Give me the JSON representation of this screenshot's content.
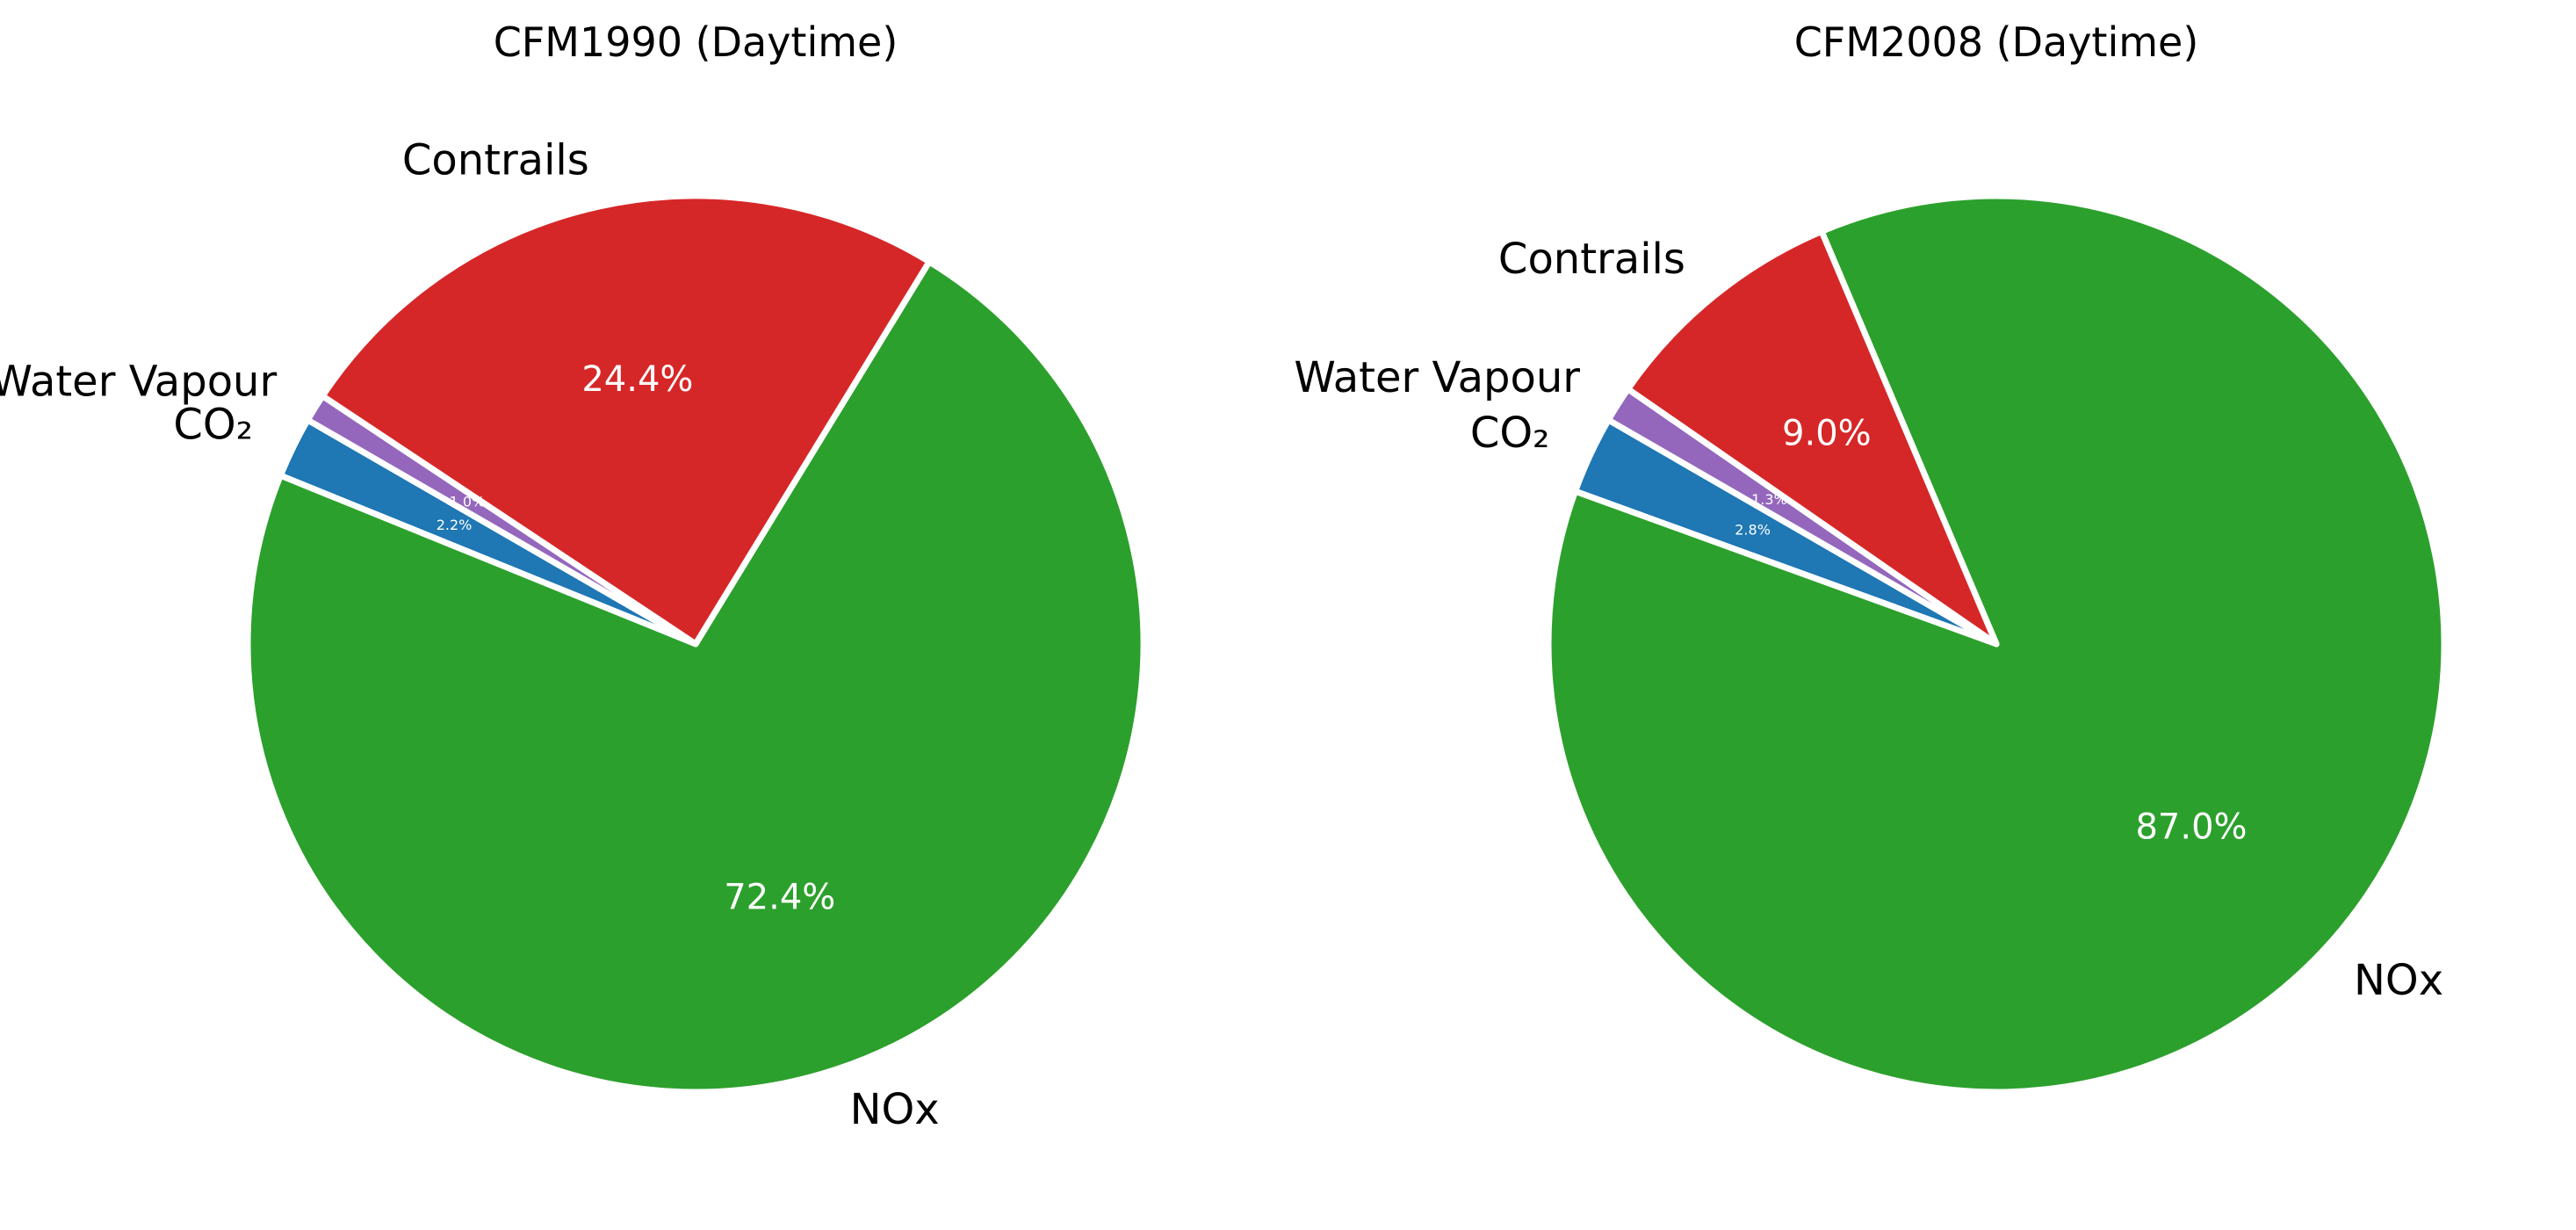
{
  "chart_data": [
    {
      "type": "pie",
      "title": "CFM1990 (Daytime)",
      "start_angle_deg": 150,
      "direction": "counterclockwise",
      "slices": [
        {
          "label": "CO₂",
          "value": 2.2,
          "pct_label": "2.2%",
          "color": "#1f77b4"
        },
        {
          "label": "NOx",
          "value": 72.4,
          "pct_label": "72.4%",
          "color": "#2ca02c"
        },
        {
          "label": "Contrails",
          "value": 24.4,
          "pct_label": "24.4%",
          "color": "#d62728"
        },
        {
          "label": "Water Vapour",
          "value": 1.0,
          "pct_label": "1.0%",
          "color": "#9467bd"
        }
      ]
    },
    {
      "type": "pie",
      "title": "CFM2008 (Daytime)",
      "start_angle_deg": 150,
      "direction": "counterclockwise",
      "slices": [
        {
          "label": "CO₂",
          "value": 2.8,
          "pct_label": "2.8%",
          "color": "#1f77b4"
        },
        {
          "label": "NOx",
          "value": 87.0,
          "pct_label": "87.0%",
          "color": "#2ca02c"
        },
        {
          "label": "Contrails",
          "value": 9.0,
          "pct_label": "9.0%",
          "color": "#d62728"
        },
        {
          "label": "Water Vapour",
          "value": 1.3,
          "pct_label": "1.3%",
          "color": "#9467bd"
        }
      ]
    }
  ]
}
